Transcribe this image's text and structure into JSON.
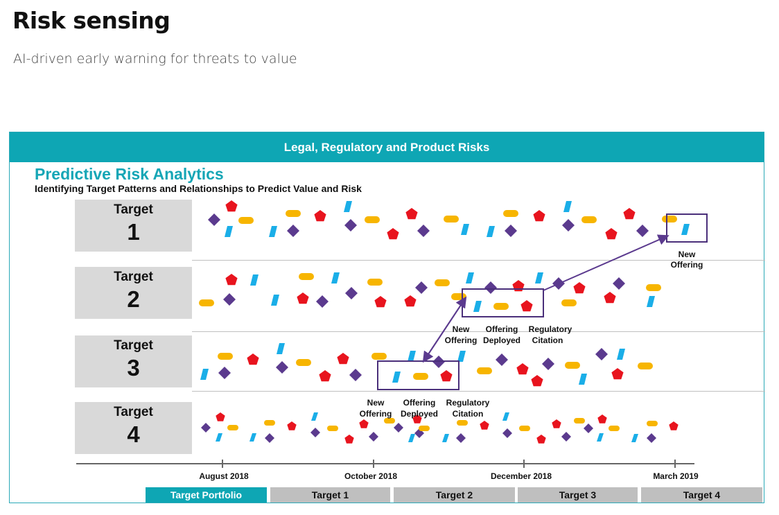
{
  "page": {
    "title": "Risk sensing",
    "subtitle": "AI-driven early warning for threats to value"
  },
  "panel": {
    "header": "Legal, Regulatory and Product Risks",
    "title": "Predictive Risk Analytics",
    "subtitle": "Identifying Target Patterns and Relationships to Predict Value and Risk"
  },
  "targets": [
    {
      "label": "Target",
      "number": "1"
    },
    {
      "label": "Target",
      "number": "2"
    },
    {
      "label": "Target",
      "number": "3"
    },
    {
      "label": "Target",
      "number": "4"
    }
  ],
  "timeline": {
    "labels": [
      "August 2018",
      "October 2018",
      "December 2018",
      "March 2019"
    ]
  },
  "annotations": {
    "row1": {
      "line1": "New",
      "line2": "Offering"
    },
    "row2": [
      {
        "line1": "New",
        "line2": "Offering"
      },
      {
        "line1": "Offering",
        "line2": "Deployed"
      },
      {
        "line1": "Regulatory",
        "line2": "Citation"
      }
    ],
    "row3": [
      {
        "line1": "New",
        "line2": "Offering"
      },
      {
        "line1": "Offering",
        "line2": "Deployed"
      },
      {
        "line1": "Regulatory",
        "line2": "Citation"
      }
    ]
  },
  "legend_icons": {
    "diamond": "purple-diamond-icon",
    "pentagon": "red-pentagon-icon",
    "pill": "yellow-pill-icon",
    "bar": "blue-bar-icon"
  },
  "colors": {
    "teal": "#0ea6b4",
    "purple": "#5b3a8e",
    "red": "#e8141e",
    "yellow": "#f7b500",
    "blue": "#1aaee8",
    "tab_inactive": "#bfbfbf"
  },
  "tabs": [
    {
      "label": "Target Portfolio",
      "active": true
    },
    {
      "label": "Target 1",
      "active": false
    },
    {
      "label": "Target 2",
      "active": false
    },
    {
      "label": "Target 3",
      "active": false
    },
    {
      "label": "Target 4",
      "active": false
    }
  ]
}
